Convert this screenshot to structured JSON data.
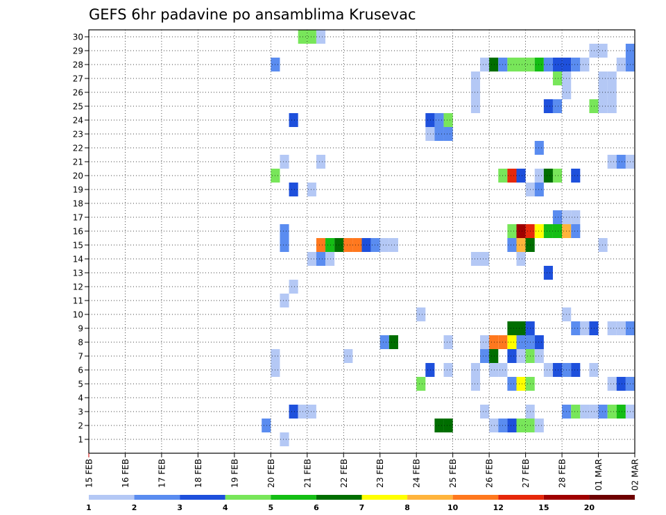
{
  "chart_data": {
    "type": "heatmap",
    "title": "GEFS 6hr padavine po ansamblima Krusevac",
    "xlabel": "",
    "ylabel": "",
    "y_categories": [
      "1",
      "2",
      "3",
      "4",
      "5",
      "6",
      "7",
      "8",
      "9",
      "10",
      "11",
      "12",
      "13",
      "14",
      "15",
      "16",
      "17",
      "18",
      "19",
      "20",
      "21",
      "22",
      "23",
      "24",
      "25",
      "26",
      "27",
      "28",
      "29",
      "30"
    ],
    "x_tick_labels": [
      "15 FEB",
      "16 FEB",
      "17 FEB",
      "18 FEB",
      "19 FEB",
      "20 FEB",
      "21 FEB",
      "22 FEB",
      "23 FEB",
      "24 FEB",
      "25 FEB",
      "26 FEB",
      "27 FEB",
      "28 FEB",
      "01 MAR",
      "02 MAR"
    ],
    "x_unit": "6-hour steps from 15 FEB 00Z",
    "grid": true,
    "legend_placement": "bottom",
    "legend": {
      "labels": [
        "1",
        "2",
        "3",
        "4",
        "5",
        "6",
        "7",
        "8",
        "10",
        "12",
        "15",
        "20"
      ],
      "colors": [
        "#b4c8f5",
        "#5a8cf0",
        "#1e50dc",
        "#78e65a",
        "#14be14",
        "#006e00",
        "#ffff00",
        "#ffb43c",
        "#ff781e",
        "#e6280a",
        "#a00000",
        "#6e0000"
      ]
    },
    "cells": [
      {
        "member": 30,
        "step": 23,
        "cls": 4
      },
      {
        "member": 30,
        "step": 24,
        "cls": 4
      },
      {
        "member": 30,
        "step": 25,
        "cls": 1
      },
      {
        "member": 29,
        "step": 55,
        "cls": 1
      },
      {
        "member": 29,
        "step": 56,
        "cls": 1
      },
      {
        "member": 29,
        "step": 59,
        "cls": 2
      },
      {
        "member": 28,
        "step": 20,
        "cls": 2
      },
      {
        "member": 28,
        "step": 43,
        "cls": 1
      },
      {
        "member": 28,
        "step": 44,
        "cls": 6
      },
      {
        "member": 28,
        "step": 45,
        "cls": 2
      },
      {
        "member": 28,
        "step": 46,
        "cls": 4
      },
      {
        "member": 28,
        "step": 47,
        "cls": 4
      },
      {
        "member": 28,
        "step": 48,
        "cls": 4
      },
      {
        "member": 28,
        "step": 49,
        "cls": 5
      },
      {
        "member": 28,
        "step": 50,
        "cls": 2
      },
      {
        "member": 28,
        "step": 51,
        "cls": 3
      },
      {
        "member": 28,
        "step": 52,
        "cls": 3
      },
      {
        "member": 28,
        "step": 53,
        "cls": 2
      },
      {
        "member": 28,
        "step": 54,
        "cls": 1
      },
      {
        "member": 28,
        "step": 58,
        "cls": 1
      },
      {
        "member": 28,
        "step": 59,
        "cls": 2
      },
      {
        "member": 27,
        "step": 42,
        "cls": 1
      },
      {
        "member": 27,
        "step": 51,
        "cls": 4
      },
      {
        "member": 27,
        "step": 52,
        "cls": 1
      },
      {
        "member": 27,
        "step": 56,
        "cls": 1
      },
      {
        "member": 27,
        "step": 57,
        "cls": 1
      },
      {
        "member": 26,
        "step": 42,
        "cls": 1
      },
      {
        "member": 26,
        "step": 52,
        "cls": 1
      },
      {
        "member": 26,
        "step": 56,
        "cls": 1
      },
      {
        "member": 26,
        "step": 57,
        "cls": 1
      },
      {
        "member": 25,
        "step": 42,
        "cls": 1
      },
      {
        "member": 25,
        "step": 50,
        "cls": 3
      },
      {
        "member": 25,
        "step": 51,
        "cls": 2
      },
      {
        "member": 25,
        "step": 55,
        "cls": 4
      },
      {
        "member": 25,
        "step": 56,
        "cls": 1
      },
      {
        "member": 25,
        "step": 57,
        "cls": 1
      },
      {
        "member": 24,
        "step": 22,
        "cls": 3
      },
      {
        "member": 24,
        "step": 37,
        "cls": 3
      },
      {
        "member": 24,
        "step": 38,
        "cls": 2
      },
      {
        "member": 24,
        "step": 39,
        "cls": 4
      },
      {
        "member": 23,
        "step": 37,
        "cls": 1
      },
      {
        "member": 23,
        "step": 38,
        "cls": 2
      },
      {
        "member": 23,
        "step": 39,
        "cls": 2
      },
      {
        "member": 22,
        "step": 49,
        "cls": 2
      },
      {
        "member": 21,
        "step": 21,
        "cls": 1
      },
      {
        "member": 21,
        "step": 25,
        "cls": 1
      },
      {
        "member": 21,
        "step": 57,
        "cls": 1
      },
      {
        "member": 21,
        "step": 58,
        "cls": 2
      },
      {
        "member": 21,
        "step": 59,
        "cls": 1
      },
      {
        "member": 20,
        "step": 20,
        "cls": 4
      },
      {
        "member": 20,
        "step": 45,
        "cls": 4
      },
      {
        "member": 20,
        "step": 46,
        "cls": 10
      },
      {
        "member": 20,
        "step": 47,
        "cls": 3
      },
      {
        "member": 20,
        "step": 49,
        "cls": 1
      },
      {
        "member": 20,
        "step": 50,
        "cls": 6
      },
      {
        "member": 20,
        "step": 51,
        "cls": 4
      },
      {
        "member": 20,
        "step": 53,
        "cls": 3
      },
      {
        "member": 19,
        "step": 22,
        "cls": 3
      },
      {
        "member": 19,
        "step": 24,
        "cls": 1
      },
      {
        "member": 19,
        "step": 48,
        "cls": 1
      },
      {
        "member": 19,
        "step": 49,
        "cls": 2
      },
      {
        "member": 17,
        "step": 51,
        "cls": 2
      },
      {
        "member": 17,
        "step": 52,
        "cls": 1
      },
      {
        "member": 17,
        "step": 53,
        "cls": 1
      },
      {
        "member": 16,
        "step": 21,
        "cls": 2
      },
      {
        "member": 16,
        "step": 46,
        "cls": 4
      },
      {
        "member": 16,
        "step": 47,
        "cls": 11
      },
      {
        "member": 16,
        "step": 48,
        "cls": 10
      },
      {
        "member": 16,
        "step": 49,
        "cls": 7
      },
      {
        "member": 16,
        "step": 50,
        "cls": 5
      },
      {
        "member": 16,
        "step": 51,
        "cls": 5
      },
      {
        "member": 16,
        "step": 52,
        "cls": 8
      },
      {
        "member": 16,
        "step": 53,
        "cls": 2
      },
      {
        "member": 15,
        "step": 21,
        "cls": 2
      },
      {
        "member": 15,
        "step": 25,
        "cls": 9
      },
      {
        "member": 15,
        "step": 26,
        "cls": 5
      },
      {
        "member": 15,
        "step": 27,
        "cls": 6
      },
      {
        "member": 15,
        "step": 28,
        "cls": 9
      },
      {
        "member": 15,
        "step": 29,
        "cls": 9
      },
      {
        "member": 15,
        "step": 30,
        "cls": 3
      },
      {
        "member": 15,
        "step": 31,
        "cls": 2
      },
      {
        "member": 15,
        "step": 32,
        "cls": 1
      },
      {
        "member": 15,
        "step": 33,
        "cls": 1
      },
      {
        "member": 15,
        "step": 46,
        "cls": 2
      },
      {
        "member": 15,
        "step": 47,
        "cls": 8
      },
      {
        "member": 15,
        "step": 48,
        "cls": 6
      },
      {
        "member": 15,
        "step": 56,
        "cls": 1
      },
      {
        "member": 14,
        "step": 24,
        "cls": 1
      },
      {
        "member": 14,
        "step": 25,
        "cls": 2
      },
      {
        "member": 14,
        "step": 26,
        "cls": 1
      },
      {
        "member": 14,
        "step": 42,
        "cls": 1
      },
      {
        "member": 14,
        "step": 43,
        "cls": 1
      },
      {
        "member": 14,
        "step": 47,
        "cls": 1
      },
      {
        "member": 13,
        "step": 50,
        "cls": 3
      },
      {
        "member": 12,
        "step": 22,
        "cls": 1
      },
      {
        "member": 11,
        "step": 21,
        "cls": 1
      },
      {
        "member": 10,
        "step": 36,
        "cls": 1
      },
      {
        "member": 10,
        "step": 52,
        "cls": 1
      },
      {
        "member": 9,
        "step": 46,
        "cls": 6
      },
      {
        "member": 9,
        "step": 47,
        "cls": 6
      },
      {
        "member": 9,
        "step": 48,
        "cls": 3
      },
      {
        "member": 9,
        "step": 53,
        "cls": 2
      },
      {
        "member": 9,
        "step": 54,
        "cls": 1
      },
      {
        "member": 9,
        "step": 55,
        "cls": 3
      },
      {
        "member": 9,
        "step": 57,
        "cls": 1
      },
      {
        "member": 9,
        "step": 58,
        "cls": 1
      },
      {
        "member": 9,
        "step": 59,
        "cls": 2
      },
      {
        "member": 8,
        "step": 32,
        "cls": 2
      },
      {
        "member": 8,
        "step": 33,
        "cls": 6
      },
      {
        "member": 8,
        "step": 39,
        "cls": 1
      },
      {
        "member": 8,
        "step": 43,
        "cls": 1
      },
      {
        "member": 8,
        "step": 44,
        "cls": 9
      },
      {
        "member": 8,
        "step": 45,
        "cls": 9
      },
      {
        "member": 8,
        "step": 46,
        "cls": 7
      },
      {
        "member": 8,
        "step": 47,
        "cls": 2
      },
      {
        "member": 8,
        "step": 48,
        "cls": 2
      },
      {
        "member": 8,
        "step": 49,
        "cls": 3
      },
      {
        "member": 7,
        "step": 20,
        "cls": 1
      },
      {
        "member": 7,
        "step": 28,
        "cls": 1
      },
      {
        "member": 7,
        "step": 43,
        "cls": 2
      },
      {
        "member": 7,
        "step": 44,
        "cls": 6
      },
      {
        "member": 7,
        "step": 46,
        "cls": 3
      },
      {
        "member": 7,
        "step": 47,
        "cls": 1
      },
      {
        "member": 7,
        "step": 48,
        "cls": 4
      },
      {
        "member": 7,
        "step": 49,
        "cls": 1
      },
      {
        "member": 6,
        "step": 20,
        "cls": 1
      },
      {
        "member": 6,
        "step": 37,
        "cls": 3
      },
      {
        "member": 6,
        "step": 39,
        "cls": 1
      },
      {
        "member": 6,
        "step": 42,
        "cls": 1
      },
      {
        "member": 6,
        "step": 44,
        "cls": 1
      },
      {
        "member": 6,
        "step": 45,
        "cls": 1
      },
      {
        "member": 6,
        "step": 50,
        "cls": 1
      },
      {
        "member": 6,
        "step": 51,
        "cls": 3
      },
      {
        "member": 6,
        "step": 52,
        "cls": 2
      },
      {
        "member": 6,
        "step": 53,
        "cls": 3
      },
      {
        "member": 6,
        "step": 55,
        "cls": 1
      },
      {
        "member": 5,
        "step": 36,
        "cls": 4
      },
      {
        "member": 5,
        "step": 42,
        "cls": 1
      },
      {
        "member": 5,
        "step": 46,
        "cls": 2
      },
      {
        "member": 5,
        "step": 47,
        "cls": 7
      },
      {
        "member": 5,
        "step": 48,
        "cls": 4
      },
      {
        "member": 5,
        "step": 57,
        "cls": 1
      },
      {
        "member": 5,
        "step": 58,
        "cls": 3
      },
      {
        "member": 5,
        "step": 59,
        "cls": 2
      },
      {
        "member": 3,
        "step": 22,
        "cls": 3
      },
      {
        "member": 3,
        "step": 23,
        "cls": 1
      },
      {
        "member": 3,
        "step": 24,
        "cls": 1
      },
      {
        "member": 3,
        "step": 43,
        "cls": 1
      },
      {
        "member": 3,
        "step": 48,
        "cls": 1
      },
      {
        "member": 3,
        "step": 52,
        "cls": 2
      },
      {
        "member": 3,
        "step": 53,
        "cls": 4
      },
      {
        "member": 3,
        "step": 54,
        "cls": 1
      },
      {
        "member": 3,
        "step": 55,
        "cls": 1
      },
      {
        "member": 3,
        "step": 56,
        "cls": 2
      },
      {
        "member": 3,
        "step": 57,
        "cls": 4
      },
      {
        "member": 3,
        "step": 58,
        "cls": 5
      },
      {
        "member": 3,
        "step": 59,
        "cls": 1
      },
      {
        "member": 2,
        "step": 19,
        "cls": 2
      },
      {
        "member": 2,
        "step": 38,
        "cls": 6
      },
      {
        "member": 2,
        "step": 39,
        "cls": 6
      },
      {
        "member": 2,
        "step": 44,
        "cls": 1
      },
      {
        "member": 2,
        "step": 45,
        "cls": 2
      },
      {
        "member": 2,
        "step": 46,
        "cls": 3
      },
      {
        "member": 2,
        "step": 47,
        "cls": 4
      },
      {
        "member": 2,
        "step": 48,
        "cls": 4
      },
      {
        "member": 2,
        "step": 49,
        "cls": 1
      },
      {
        "member": 1,
        "step": 21,
        "cls": 1
      }
    ]
  }
}
